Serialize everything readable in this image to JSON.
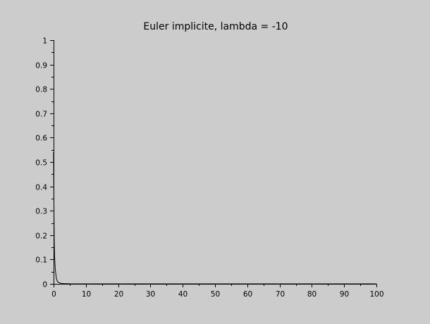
{
  "chart_data": {
    "type": "line",
    "title": "Euler implicite, lambda = -10",
    "xlabel": "",
    "ylabel": "",
    "xlim": [
      0,
      100
    ],
    "ylim": [
      0,
      1
    ],
    "grid": false,
    "x_ticks": [
      0,
      10,
      20,
      30,
      40,
      50,
      60,
      70,
      80,
      90,
      100
    ],
    "x_tick_labels": [
      "0",
      "10",
      "20",
      "30",
      "40",
      "50",
      "60",
      "70",
      "80",
      "90",
      "100"
    ],
    "y_ticks": [
      0,
      0.1,
      0.2,
      0.3,
      0.4,
      0.5,
      0.6,
      0.7,
      0.8,
      0.9,
      1
    ],
    "y_tick_labels": [
      "0",
      "0.1",
      "0.2",
      "0.3",
      "0.4",
      "0.5",
      "0.6",
      "0.7",
      "0.8",
      "0.9",
      "1"
    ],
    "series": [
      {
        "color": "#000000",
        "x": [
          0,
          0.1,
          0.2,
          0.3,
          0.4,
          0.5,
          0.6,
          0.7,
          0.8,
          0.9,
          1.0,
          1.2,
          1.5,
          2.0,
          3.0,
          5.0,
          10,
          20,
          40,
          60,
          80,
          100
        ],
        "y": [
          0.54,
          0.34,
          0.18,
          0.12,
          0.09,
          0.065,
          0.05,
          0.04,
          0.03,
          0.022,
          0.016,
          0.01,
          0.006,
          0.003,
          0.001,
          0.0003,
          0,
          0,
          0,
          0,
          0,
          0
        ]
      }
    ]
  }
}
